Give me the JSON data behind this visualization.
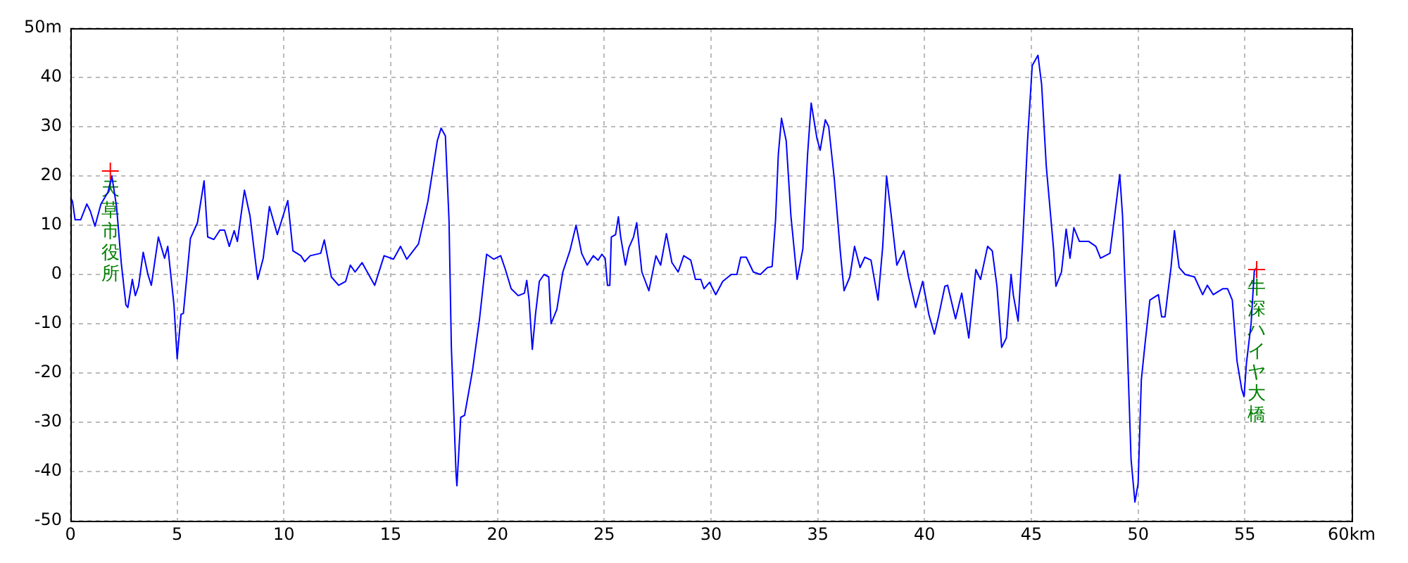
{
  "chart_data": {
    "type": "line",
    "x": [
      0,
      0.1,
      0.22,
      0.48,
      0.77,
      0.93,
      1.15,
      1.43,
      1.76,
      1.94,
      2.16,
      2.38,
      2.6,
      2.69,
      2.9,
      3.04,
      3.19,
      3.41,
      3.63,
      3.79,
      4.12,
      4.41,
      4.56,
      4.85,
      5.0,
      5.18,
      5.29,
      5.62,
      5.95,
      6.26,
      6.43,
      6.72,
      7.0,
      7.22,
      7.44,
      7.67,
      7.82,
      8.15,
      8.41,
      8.77,
      9.03,
      9.32,
      9.69,
      10.18,
      10.42,
      10.79,
      10.97,
      11.23,
      11.72,
      11.89,
      12.22,
      12.56,
      12.89,
      13.11,
      13.33,
      13.66,
      14.25,
      14.69,
      15.13,
      15.46,
      15.75,
      16.3,
      16.74,
      17.18,
      17.36,
      17.56,
      17.73,
      17.84,
      18.06,
      18.1,
      18.28,
      18.46,
      18.83,
      19.16,
      19.49,
      19.82,
      20.15,
      20.37,
      20.64,
      20.97,
      21.26,
      21.37,
      21.48,
      21.63,
      21.78,
      21.96,
      22.18,
      22.4,
      22.51,
      22.78,
      23.06,
      23.39,
      23.68,
      23.94,
      24.2,
      24.49,
      24.71,
      24.89,
      25.04,
      25.15,
      25.26,
      25.33,
      25.53,
      25.66,
      25.77,
      25.99,
      26.15,
      26.37,
      26.52,
      26.76,
      27.09,
      27.42,
      27.64,
      27.91,
      28.17,
      28.46,
      28.72,
      29.05,
      29.27,
      29.52,
      29.67,
      29.93,
      30.22,
      30.55,
      30.95,
      31.21,
      31.39,
      31.65,
      31.98,
      32.31,
      32.64,
      32.86,
      33.02,
      33.15,
      33.3,
      33.52,
      33.74,
      34.03,
      34.3,
      34.52,
      34.69,
      34.96,
      35.11,
      35.35,
      35.51,
      35.77,
      36.06,
      36.23,
      36.5,
      36.72,
      36.98,
      37.2,
      37.49,
      37.82,
      38.04,
      38.22,
      38.44,
      38.7,
      39.03,
      39.25,
      39.58,
      39.91,
      40.2,
      40.46,
      40.64,
      40.95,
      41.08,
      41.45,
      41.74,
      42.07,
      42.4,
      42.62,
      42.95,
      43.17,
      43.39,
      43.61,
      43.83,
      44.05,
      44.16,
      44.38,
      44.6,
      44.82,
      45.04,
      45.31,
      45.48,
      45.7,
      46.04,
      46.15,
      46.41,
      46.63,
      46.81,
      46.99,
      47.25,
      47.69,
      48.02,
      48.24,
      48.68,
      48.9,
      49.14,
      49.27,
      49.45,
      49.67,
      49.85,
      50.0,
      50.15,
      50.33,
      50.55,
      50.95,
      51.1,
      51.26,
      51.39,
      51.54,
      51.7,
      51.92,
      52.2,
      52.64,
      53.02,
      53.24,
      53.52,
      53.96,
      54.19,
      54.41,
      54.63,
      54.85,
      54.96,
      55.07,
      55.29,
      55.44,
      55.55
    ],
    "series": [
      {
        "color": "#0000ff",
        "values": [
          15.7,
          14.8,
          11.1,
          11.1,
          14.3,
          12.9,
          9.8,
          14.3,
          16.7,
          20,
          13.8,
          2.4,
          -6.2,
          -6.7,
          -1,
          -4.3,
          -2.4,
          4.5,
          0,
          -2.2,
          7.6,
          3.3,
          5.7,
          -6.2,
          -17.1,
          -8.1,
          -7.9,
          7.3,
          10.5,
          19,
          7.6,
          7.1,
          9,
          9,
          5.7,
          8.9,
          6.7,
          17.1,
          11.9,
          -1,
          3.3,
          13.8,
          8.1,
          15,
          4.8,
          3.8,
          2.6,
          3.8,
          4.3,
          7,
          -0.5,
          -2.2,
          -1.4,
          1.9,
          0.5,
          2.4,
          -2.2,
          3.8,
          3.1,
          5.7,
          3.1,
          6.2,
          14.8,
          27.1,
          29.7,
          28.1,
          11,
          -14.8,
          -40.5,
          -42.9,
          -29,
          -28.6,
          -19.5,
          -9,
          4.1,
          3.1,
          3.8,
          1,
          -2.9,
          -4.3,
          -3.8,
          -1.2,
          -5.2,
          -15.2,
          -8.1,
          -1.4,
          0,
          -0.5,
          -10,
          -7.1,
          0.5,
          4.8,
          10,
          4.3,
          1.9,
          3.8,
          2.9,
          4.1,
          3.3,
          -2.2,
          -2.2,
          7.6,
          8.1,
          11.7,
          7.6,
          1.9,
          5.4,
          7.6,
          10.5,
          0.5,
          -3.3,
          3.8,
          1.9,
          8.3,
          2.4,
          0.5,
          3.8,
          2.9,
          -1,
          -1,
          -2.9,
          -1.6,
          -4.1,
          -1.4,
          0,
          0,
          3.5,
          3.5,
          0.5,
          0,
          1.4,
          1.6,
          11,
          24.3,
          31.7,
          27.1,
          11.9,
          -1,
          5.2,
          24.3,
          34.8,
          27.6,
          25.2,
          31.4,
          30,
          19.5,
          4.3,
          -3.3,
          -0.5,
          5.7,
          1.4,
          3.5,
          2.9,
          -5.2,
          5.7,
          20,
          11.9,
          1.9,
          4.8,
          -0.5,
          -6.7,
          -1.4,
          -8.1,
          -12.1,
          -8.8,
          -2.4,
          -2.2,
          -9,
          -3.8,
          -12.9,
          1,
          -1,
          5.7,
          4.8,
          -2.4,
          -14.8,
          -12.9,
          0,
          -4.3,
          -9.5,
          7.1,
          27.1,
          42.4,
          44.5,
          38.6,
          21.9,
          5.2,
          -2.4,
          0.5,
          9.2,
          3.3,
          9.5,
          6.7,
          6.7,
          5.7,
          3.3,
          4.3,
          11.9,
          20.3,
          11.9,
          -9,
          -37.6,
          -46.2,
          -42.4,
          -21.4,
          -13.8,
          -5.2,
          -4.1,
          -8.6,
          -8.6,
          -3.8,
          1.4,
          8.9,
          1.4,
          0,
          -0.5,
          -4.1,
          -2.2,
          -4.1,
          -2.9,
          -2.9,
          -5.2,
          -17.6,
          -23.3,
          -24.8,
          -18.1,
          -10,
          0.7,
          1.4
        ]
      }
    ],
    "xlim": [
      0,
      60
    ],
    "xticks": [
      0,
      5,
      10,
      15,
      20,
      25,
      30,
      35,
      40,
      45,
      50,
      55,
      {
        "value": 60,
        "label": "60km"
      }
    ],
    "ylim": [
      -50,
      50
    ],
    "yticks": [
      -50,
      -40,
      -30,
      -20,
      -10,
      0,
      10,
      20,
      30,
      40,
      {
        "value": 50,
        "label": "50m"
      }
    ],
    "grid": true,
    "annotations": [
      {
        "text": "天草市役所",
        "x": 1.87,
        "y": 21
      },
      {
        "text": "牛深ハイヤ大橋",
        "x": 55.55,
        "y": 1
      }
    ]
  }
}
